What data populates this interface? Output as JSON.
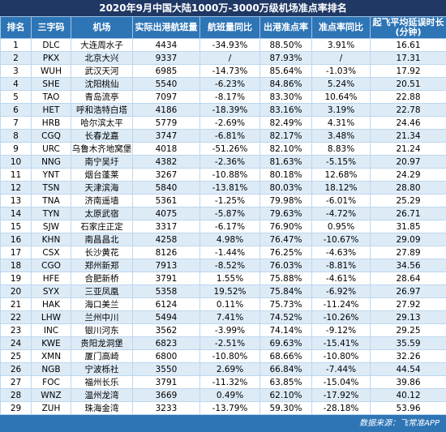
{
  "title": "2020年9月中国大陆1000万-3000万级机场准点率排名",
  "table": {
    "headers": [
      "排名",
      "三字码",
      "机场",
      "实际出港航班量",
      "航班量同比",
      "出港准点率",
      "准点率同比",
      [
        "起飞平均延误时长",
        "(分钟)"
      ]
    ],
    "rows": [
      [
        "1",
        "DLC",
        "大连周水子",
        "4434",
        "-34.93%",
        "88.50%",
        "3.91%",
        "16.61"
      ],
      [
        "2",
        "PKX",
        "北京大兴",
        "9337",
        "/",
        "87.93%",
        "/",
        "17.31"
      ],
      [
        "3",
        "WUH",
        "武汉天河",
        "6985",
        "-14.73%",
        "85.64%",
        "-1.03%",
        "17.92"
      ],
      [
        "4",
        "SHE",
        "沈阳桃仙",
        "5540",
        "-6.23%",
        "84.86%",
        "5.24%",
        "20.51"
      ],
      [
        "5",
        "TAO",
        "青岛流亭",
        "7097",
        "-8.17%",
        "83.30%",
        "10.64%",
        "22.88"
      ],
      [
        "6",
        "HET",
        "呼和浩特白塔",
        "4186",
        "-18.39%",
        "83.16%",
        "3.19%",
        "22.78"
      ],
      [
        "7",
        "HRB",
        "哈尔滨太平",
        "5779",
        "-2.69%",
        "82.49%",
        "4.31%",
        "24.46"
      ],
      [
        "8",
        "CGQ",
        "长春龙嘉",
        "3747",
        "-6.81%",
        "82.17%",
        "3.48%",
        "21.34"
      ],
      [
        "9",
        "URC",
        "乌鲁木齐地窝堡",
        "4018",
        "-51.26%",
        "82.10%",
        "8.83%",
        "21.24"
      ],
      [
        "10",
        "NNG",
        "南宁吴圩",
        "4382",
        "-2.36%",
        "81.63%",
        "-5.15%",
        "20.97"
      ],
      [
        "11",
        "YNT",
        "烟台蓬莱",
        "3267",
        "-10.88%",
        "80.18%",
        "12.68%",
        "24.29"
      ],
      [
        "12",
        "TSN",
        "天津滨海",
        "5840",
        "-13.81%",
        "80.03%",
        "18.12%",
        "28.80"
      ],
      [
        "13",
        "TNA",
        "济南遥墙",
        "5361",
        "-1.25%",
        "79.98%",
        "-6.01%",
        "25.29"
      ],
      [
        "14",
        "TYN",
        "太原武宿",
        "4075",
        "-5.87%",
        "79.63%",
        "-4.72%",
        "26.71"
      ],
      [
        "15",
        "SJW",
        "石家庄正定",
        "3317",
        "-6.17%",
        "76.90%",
        "0.95%",
        "31.85"
      ],
      [
        "16",
        "KHN",
        "南昌昌北",
        "4258",
        "4.98%",
        "76.47%",
        "-10.67%",
        "29.09"
      ],
      [
        "17",
        "CSX",
        "长沙黄花",
        "8126",
        "-1.44%",
        "76.25%",
        "-4.63%",
        "27.89"
      ],
      [
        "18",
        "CGO",
        "郑州新郑",
        "7913",
        "-8.52%",
        "76.03%",
        "-8.81%",
        "34.56"
      ],
      [
        "19",
        "HFE",
        "合肥新桥",
        "3791",
        "1.55%",
        "75.88%",
        "-4.61%",
        "28.64"
      ],
      [
        "20",
        "SYX",
        "三亚凤凰",
        "5358",
        "19.52%",
        "75.84%",
        "-6.92%",
        "26.97"
      ],
      [
        "21",
        "HAK",
        "海口美兰",
        "6124",
        "0.11%",
        "75.73%",
        "-11.24%",
        "27.92"
      ],
      [
        "22",
        "LHW",
        "兰州中川",
        "5494",
        "7.41%",
        "74.52%",
        "-10.26%",
        "29.13"
      ],
      [
        "23",
        "INC",
        "银川河东",
        "3562",
        "-3.99%",
        "74.14%",
        "-9.12%",
        "29.25"
      ],
      [
        "24",
        "KWE",
        "贵阳龙洞堡",
        "6823",
        "-2.51%",
        "69.63%",
        "-15.41%",
        "35.59"
      ],
      [
        "25",
        "XMN",
        "厦门高崎",
        "6800",
        "-10.80%",
        "68.66%",
        "-10.80%",
        "32.26"
      ],
      [
        "26",
        "NGB",
        "宁波栎社",
        "3550",
        "2.69%",
        "66.84%",
        "-7.44%",
        "44.54"
      ],
      [
        "27",
        "FOC",
        "福州长乐",
        "3791",
        "-11.32%",
        "63.85%",
        "-15.04%",
        "39.86"
      ],
      [
        "28",
        "WNZ",
        "温州龙湾",
        "3669",
        "0.49%",
        "62.10%",
        "-17.92%",
        "40.12"
      ],
      [
        "29",
        "ZUH",
        "珠海金湾",
        "3233",
        "-13.79%",
        "59.30%",
        "-28.18%",
        "53.96"
      ]
    ]
  },
  "footer": "数据来源：飞常准APP"
}
